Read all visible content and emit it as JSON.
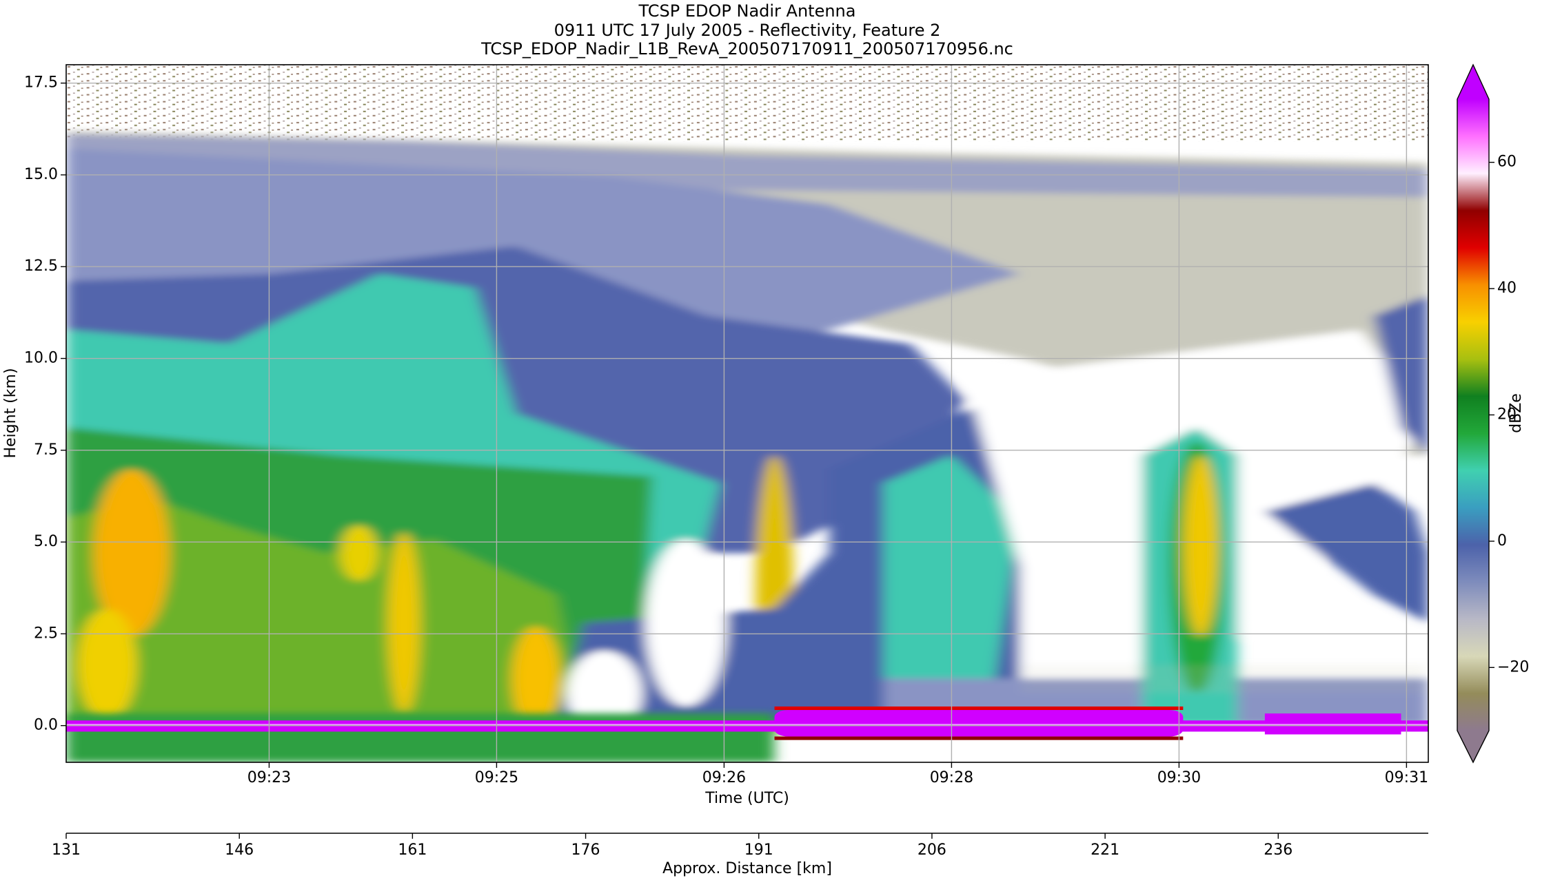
{
  "chart_data": {
    "type": "heatmap",
    "title_lines": [
      "TCSP EDOP Nadir Antenna",
      "0911 UTC 17 July 2005 - Reflectivity, Feature 2",
      "TCSP_EDOP_Nadir_L1B_RevA_200507170911_200507170956.nc"
    ],
    "xlabel": "Time (UTC)",
    "ylabel": "Height (km)",
    "categories": [
      "09:23",
      "09:25",
      "09:26",
      "09:28",
      "09:30",
      "09:31"
    ],
    "ylim": [
      -1,
      18
    ],
    "yticks": [
      {
        "value": 0,
        "label": "0.0"
      },
      2.5,
      {
        "value": 5,
        "label": "5.0"
      },
      7.5,
      {
        "value": 10,
        "label": "10.0"
      },
      12.5,
      {
        "value": 15,
        "label": "15.0"
      },
      17.5
    ],
    "grid": true,
    "distance_axis": {
      "label": "Approx. Distance [km]",
      "xlim": [
        131,
        249
      ],
      "xticks": [
        131,
        146,
        161,
        176,
        191,
        206,
        221,
        236
      ]
    },
    "colorbar": {
      "label": "dBZe",
      "lim": [
        -30,
        70
      ],
      "ticks": [
        {
          "value": -20,
          "label": "−20"
        },
        0,
        20,
        40,
        60
      ],
      "colors": [
        "#8e7a8e",
        "#948c5a",
        "#d8d8b8",
        "#b8b8c6",
        "#7e8cbc",
        "#4c62aa",
        "#3a9ec0",
        "#40d0b0",
        "#22a83a",
        "#108020",
        "#a8c010",
        "#f8d000",
        "#f89000",
        "#e00000",
        "#900000",
        "#fff0ff",
        "#ff70ff",
        "#c000ff"
      ]
    }
  }
}
